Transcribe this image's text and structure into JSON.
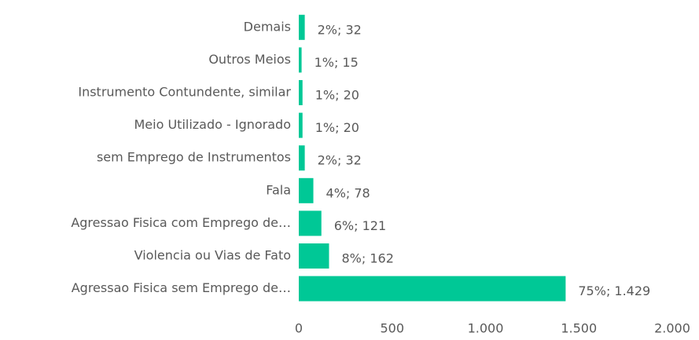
{
  "chart_data": {
    "type": "hbar",
    "categories": [
      "Demais",
      "Outros Meios",
      "Instrumento Contundente, similar",
      "Meio Utilizado - Ignorado",
      "sem Emprego de Instrumentos",
      "Fala",
      "Agressao Fisica com Emprego de…",
      "Violencia ou Vias de Fato",
      "Agressao Fisica sem Emprego de…"
    ],
    "values": [
      32,
      15,
      20,
      20,
      32,
      78,
      121,
      162,
      1429
    ],
    "value_labels": [
      "2%; 32",
      "1%; 15",
      "1%; 20",
      "1%; 20",
      "2%; 32",
      "4%; 78",
      "6%; 121",
      "8%; 162",
      "75%; 1.429"
    ],
    "color": "#00c896",
    "xlim": [
      0,
      2000
    ],
    "xticks": [
      0,
      500,
      {
        "value": 1000,
        "label": "1.000"
      },
      {
        "value": 1500,
        "label": "1.500"
      },
      {
        "value": 2000,
        "label": "2.000"
      }
    ],
    "grid": false
  }
}
